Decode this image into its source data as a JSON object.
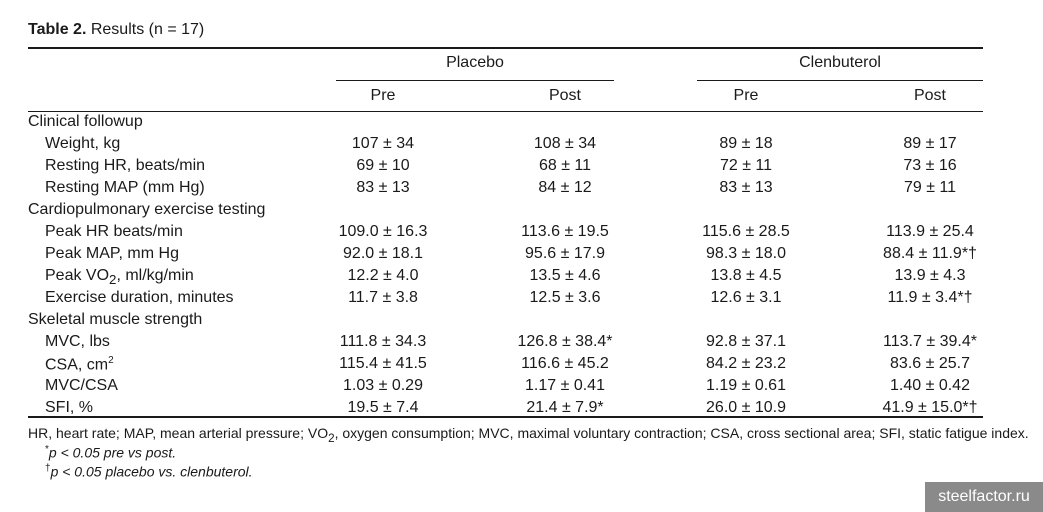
{
  "caption": {
    "label": "Table 2.",
    "text": "Results (n = 17)"
  },
  "groups": [
    "Placebo",
    "Clenbuterol"
  ],
  "subheaders": [
    "Pre",
    "Post",
    "Pre",
    "Post"
  ],
  "rows": [
    {
      "type": "section",
      "label": "Clinical followup"
    },
    {
      "type": "data",
      "label": "Weight, kg",
      "values": [
        "107 ± 34",
        "108 ± 34",
        "89 ± 18",
        "89 ± 17"
      ]
    },
    {
      "type": "data",
      "label": "Resting HR, beats/min",
      "values": [
        "69 ± 10",
        "68 ± 11",
        "72 ± 11",
        "73 ± 16"
      ]
    },
    {
      "type": "data",
      "label": "Resting MAP (mm Hg)",
      "values": [
        "83 ± 13",
        "84 ± 12",
        "83 ± 13",
        "79 ± 11"
      ]
    },
    {
      "type": "section",
      "label": "Cardiopulmonary exercise testing"
    },
    {
      "type": "data",
      "label": "Peak HR beats/min",
      "values": [
        "109.0 ± 16.3",
        "113.6 ± 19.5",
        "115.6 ± 28.5",
        "113.9 ± 25.4"
      ]
    },
    {
      "type": "data",
      "label": "Peak MAP, mm Hg",
      "values": [
        "92.0 ± 18.1",
        "95.6 ± 17.9",
        "98.3 ± 18.0",
        "88.4 ± 11.9*†"
      ]
    },
    {
      "type": "data",
      "label": "Peak VO",
      "label_sub": "2",
      "label_rest": ", ml/kg/min",
      "values": [
        "12.2 ± 4.0",
        "13.5 ± 4.6",
        "13.8 ± 4.5",
        "13.9 ± 4.3"
      ]
    },
    {
      "type": "data",
      "label": "Exercise duration, minutes",
      "values": [
        "11.7 ± 3.8",
        "12.5 ± 3.6",
        "12.6 ± 3.1",
        "11.9 ± 3.4*†"
      ]
    },
    {
      "type": "section",
      "label": "Skeletal muscle strength"
    },
    {
      "type": "data",
      "label": "MVC, lbs",
      "values": [
        "111.8 ± 34.3",
        "126.8 ± 38.4*",
        "92.8 ± 37.1",
        "113.7 ± 39.4*"
      ]
    },
    {
      "type": "data",
      "label": "CSA, cm",
      "label_sup": "2",
      "values": [
        "115.4 ± 41.5",
        "116.6 ± 45.2",
        "84.2 ± 23.2",
        "83.6 ± 25.7"
      ]
    },
    {
      "type": "data",
      "label": "MVC/CSA",
      "values": [
        "1.03 ± 0.29",
        "1.17 ± 0.41",
        "1.19 ± 0.61",
        "1.40 ± 0.42"
      ]
    },
    {
      "type": "data",
      "label": "SFI, %",
      "values": [
        "19.5 ± 7.4",
        "21.4 ± 7.9*",
        "26.0 ± 10.9",
        "41.9 ± 15.0*†"
      ]
    }
  ],
  "footnotes": {
    "abbrev_a": "HR, heart rate; MAP, mean arterial pressure; VO",
    "abbrev_sub": "2",
    "abbrev_b": ", oxygen consumption; MVC, maximal voluntary contraction; CSA, cross sectional area; SFI, static fatigue index.",
    "note1_mark": "*",
    "note1_text": "p < 0.05 pre vs post.",
    "note2_mark": "†",
    "note2_text": "p < 0.05 placebo vs. clenbuterol."
  },
  "watermark": "steelfactor.ru"
}
